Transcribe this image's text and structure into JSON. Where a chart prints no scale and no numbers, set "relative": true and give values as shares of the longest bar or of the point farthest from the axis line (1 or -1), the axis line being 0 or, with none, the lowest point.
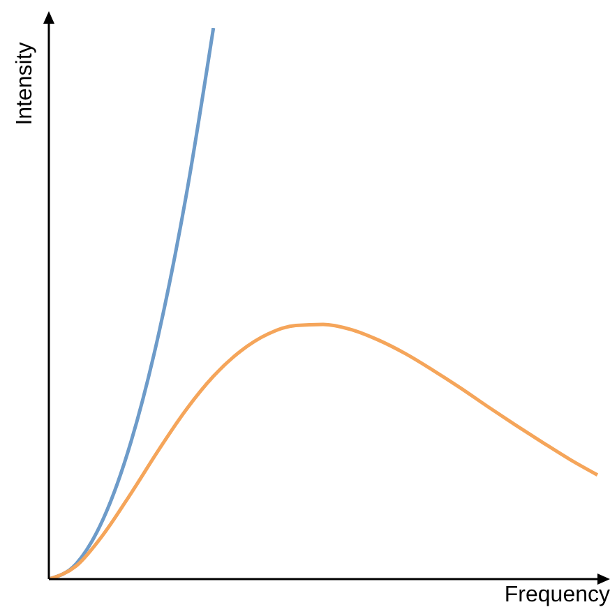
{
  "chart_data": {
    "type": "line",
    "xlabel": "Frequency",
    "ylabel": "Intensity",
    "relative": true,
    "categories": [
      null,
      null,
      null,
      null,
      null,
      null,
      null,
      null,
      null,
      null,
      null,
      null,
      null,
      null,
      null,
      null,
      null,
      null,
      null,
      null,
      null
    ],
    "series": [
      {
        "color": "#6d9bc9",
        "values": [
          0,
          0.028,
          0.111,
          0.25,
          0.444,
          0.694,
          1.0,
          null,
          null,
          null,
          null,
          null,
          null,
          null,
          null,
          null,
          null,
          null,
          null,
          null,
          null
        ]
      },
      {
        "color": "#f5a55a",
        "values": [
          0,
          0.024,
          0.082,
          0.156,
          0.234,
          0.307,
          0.368,
          0.414,
          0.445,
          0.46,
          0.462,
          0.453,
          0.434,
          0.409,
          0.379,
          0.347,
          0.313,
          0.28,
          0.248,
          0.217,
          0.189
        ]
      }
    ]
  }
}
